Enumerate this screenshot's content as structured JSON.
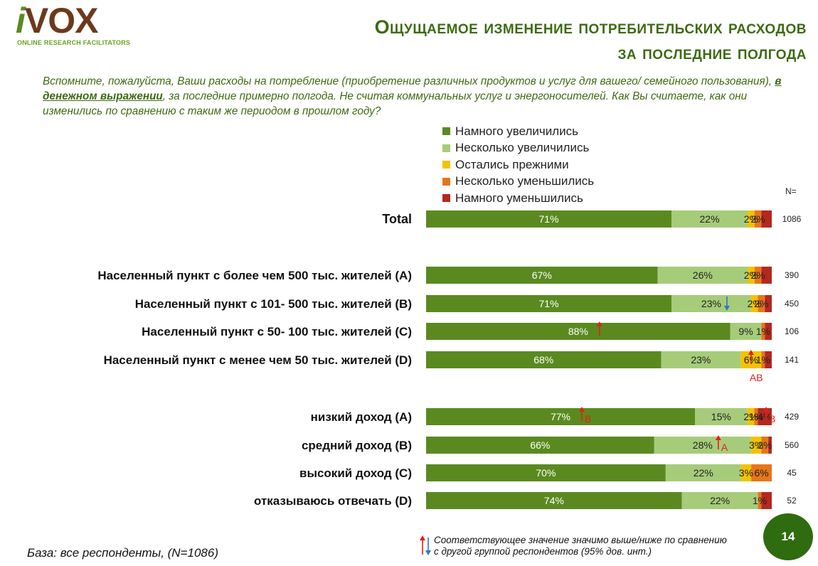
{
  "logo": {
    "brand_i": "i",
    "brand_rest": "VOX",
    "tagline": "ONLINE RESEARCH FACILITATORS"
  },
  "title": {
    "line1": "Ощущаемое изменение потребительских расходов",
    "line2": "за последние полгода"
  },
  "question": {
    "part1": "Вспомните, пожалуйста, Ваши расходы на потребление (приобретение различных продуктов и услуг для вашего/ семейного пользования), ",
    "emphasis": "в денежном выражении",
    "part2": ", за последние примерно полгода. Не считая коммунальных услуг и энергоносителей. Как Вы считаете, как они изменились по сравнению с таким же периодом в прошлом году?"
  },
  "colors": {
    "s1": "#5a8a1f",
    "s2": "#a6cc7a",
    "s3": "#f2c300",
    "s4": "#e5761b",
    "s5": "#b4281e",
    "up": "#e0201c",
    "down": "#2a78c8"
  },
  "n_header": "N=",
  "chart_data": {
    "type": "bar",
    "orientation": "horizontal-stacked-100",
    "series": [
      {
        "name": "Намного увеличились",
        "values": [
          71,
          67,
          71,
          88,
          68,
          77,
          66,
          70,
          74
        ]
      },
      {
        "name": "Несколько увеличились",
        "values": [
          22,
          26,
          23,
          9,
          23,
          15,
          28,
          22,
          22
        ]
      },
      {
        "name": "Остались прежними",
        "values": [
          2,
          2,
          2,
          0,
          6,
          2,
          3,
          3,
          0
        ]
      },
      {
        "name": "Несколько уменьшились",
        "values": [
          2,
          2,
          2,
          1,
          1,
          1,
          2,
          6,
          1
        ]
      },
      {
        "name": "Намного уменьшились",
        "values": [
          3,
          3,
          2,
          2,
          2,
          4,
          1,
          0,
          3
        ]
      }
    ],
    "categories": [
      "Total",
      "Населенный пункт с более чем 500 тыс. жителей (А)",
      "Населенный пункт с 101- 500 тыс. жителей (В)",
      "Населенный пункт с 50- 100 тыс. жителей (С)",
      "Населенный пункт с менее чем 50 тыс. жителей (D)",
      "низкий доход (А)",
      "средний доход (В)",
      "высокий доход (С)",
      "отказываюсь отвечать (D)"
    ],
    "n": [
      "1086",
      "390",
      "450",
      "106",
      "141",
      "429",
      "560",
      "45",
      "52"
    ],
    "data_labels": [
      [
        "71%",
        "22%",
        "2%",
        "2%",
        ""
      ],
      [
        "67%",
        "26%",
        "2%",
        "2%",
        ""
      ],
      [
        "71%",
        "23%",
        "2%",
        "2%",
        ""
      ],
      [
        "88%",
        "9%",
        "",
        "1%",
        ""
      ],
      [
        "68%",
        "23%",
        "6%",
        "1%",
        ""
      ],
      [
        "77%",
        "15%",
        "2%",
        "1%",
        "4%"
      ],
      [
        "66%",
        "28%",
        "3%",
        "2%",
        ""
      ],
      [
        "70%",
        "22%",
        "3%",
        "6%",
        ""
      ],
      [
        "74%",
        "22%",
        "",
        "1%",
        ""
      ]
    ],
    "significance": [
      {
        "row": 2,
        "series": 1,
        "direction": "down",
        "label": ""
      },
      {
        "row": 3,
        "series": 0,
        "direction": "up",
        "label": ""
      },
      {
        "row": 4,
        "series": 2,
        "direction": "up",
        "label": "AB"
      },
      {
        "row": 5,
        "series": 0,
        "direction": "up",
        "label": "B"
      },
      {
        "row": 5,
        "series": 4,
        "direction": "up",
        "label": "B"
      },
      {
        "row": 6,
        "series": 1,
        "direction": "up",
        "label": "A"
      }
    ],
    "xlim": [
      0,
      100
    ]
  },
  "footer": {
    "base": "База: все респонденты, (N=1086)",
    "note": "Соответствующее значение значимо выше/ниже по сравнению с другой группой респондентов (95% дов. инт.)",
    "page": "14"
  }
}
